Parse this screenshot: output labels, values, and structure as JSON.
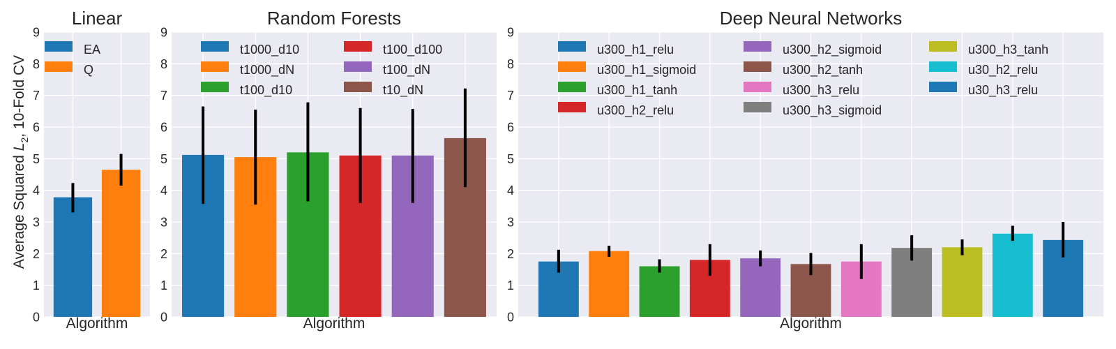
{
  "ylabel_prefix": "Average Squared ",
  "ylabel_var": "L",
  "ylabel_sub": "2",
  "ylabel_suffix": ", 10-Fold CV",
  "colors": {
    "background": "#eaeaf2",
    "grid": "#ffffff",
    "errorbar": "#000000"
  },
  "chart_data": [
    {
      "type": "bar",
      "title": "Linear",
      "xlabel": "Algorithm",
      "ylim": [
        0,
        9
      ],
      "yticks": [
        "0",
        "1",
        "2",
        "3",
        "4",
        "5",
        "6",
        "7",
        "8",
        "9"
      ],
      "legend_location": "top-right",
      "legend_columns": 1,
      "series": [
        {
          "name": "EA",
          "value": 3.78,
          "err_low": 3.3,
          "err_high": 4.23,
          "color": "#1f77b4"
        },
        {
          "name": "Q",
          "value": 4.65,
          "err_low": 4.15,
          "err_high": 5.15,
          "color": "#ff7f0e"
        }
      ]
    },
    {
      "type": "bar",
      "title": "Random Forests",
      "xlabel": "Algorithm",
      "ylim": [
        0,
        9
      ],
      "yticks": [
        "0",
        "1",
        "2",
        "3",
        "4",
        "5",
        "6",
        "7",
        "8",
        "9"
      ],
      "legend_location": "top",
      "legend_columns": 2,
      "series": [
        {
          "name": "t1000_d10",
          "value": 5.12,
          "err_low": 3.57,
          "err_high": 6.65,
          "color": "#1f77b4"
        },
        {
          "name": "t1000_dN",
          "value": 5.05,
          "err_low": 3.55,
          "err_high": 6.55,
          "color": "#ff7f0e"
        },
        {
          "name": "t100_d10",
          "value": 5.2,
          "err_low": 3.65,
          "err_high": 6.78,
          "color": "#2ca02c"
        },
        {
          "name": "t100_d100",
          "value": 5.1,
          "err_low": 3.6,
          "err_high": 6.6,
          "color": "#d62728"
        },
        {
          "name": "t100_dN",
          "value": 5.1,
          "err_low": 3.6,
          "err_high": 6.57,
          "color": "#9467bd"
        },
        {
          "name": "t10_dN",
          "value": 5.65,
          "err_low": 4.1,
          "err_high": 7.22,
          "color": "#8c564b"
        }
      ]
    },
    {
      "type": "bar",
      "title": "Deep Neural Networks",
      "xlabel": "Algorithm",
      "ylim": [
        0,
        9
      ],
      "yticks": [
        "0",
        "1",
        "2",
        "3",
        "4",
        "5",
        "6",
        "7",
        "8",
        "9"
      ],
      "legend_location": "top",
      "legend_columns": 3,
      "series": [
        {
          "name": "u300_h1_relu",
          "value": 1.75,
          "err_low": 1.4,
          "err_high": 2.12,
          "color": "#1f77b4"
        },
        {
          "name": "u300_h1_sigmoid",
          "value": 2.08,
          "err_low": 1.9,
          "err_high": 2.25,
          "color": "#ff7f0e"
        },
        {
          "name": "u300_h1_tanh",
          "value": 1.6,
          "err_low": 1.4,
          "err_high": 1.82,
          "color": "#2ca02c"
        },
        {
          "name": "u300_h2_relu",
          "value": 1.8,
          "err_low": 1.3,
          "err_high": 2.3,
          "color": "#d62728"
        },
        {
          "name": "u300_h2_sigmoid",
          "value": 1.85,
          "err_low": 1.6,
          "err_high": 2.1,
          "color": "#9467bd"
        },
        {
          "name": "u300_h2_tanh",
          "value": 1.67,
          "err_low": 1.32,
          "err_high": 2.02,
          "color": "#8c564b"
        },
        {
          "name": "u300_h3_relu",
          "value": 1.75,
          "err_low": 1.2,
          "err_high": 2.3,
          "color": "#e377c2"
        },
        {
          "name": "u300_h3_sigmoid",
          "value": 2.18,
          "err_low": 1.78,
          "err_high": 2.58,
          "color": "#7f7f7f"
        },
        {
          "name": "u300_h3_tanh",
          "value": 2.2,
          "err_low": 1.95,
          "err_high": 2.45,
          "color": "#bcbd22"
        },
        {
          "name": "u30_h2_relu",
          "value": 2.63,
          "err_low": 2.4,
          "err_high": 2.88,
          "color": "#17becf"
        },
        {
          "name": "u30_h3_relu",
          "value": 2.43,
          "err_low": 1.88,
          "err_high": 3.0,
          "color": "#1f77b4"
        }
      ]
    }
  ]
}
